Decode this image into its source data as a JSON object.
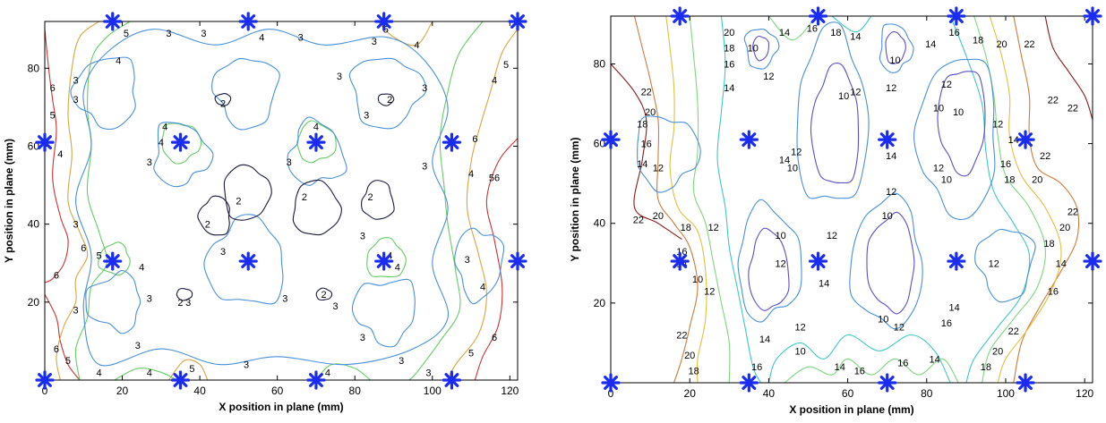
{
  "chart_data": [
    {
      "type": "contour",
      "xlabel": "X position in plane (mm)",
      "ylabel": "Y position in plane (mm)",
      "xlim": [
        0,
        122
      ],
      "ylim": [
        0,
        92
      ],
      "xticks": [
        0,
        20,
        40,
        60,
        80,
        100,
        120
      ],
      "yticks": [
        20,
        40,
        60,
        80
      ],
      "markers": [
        {
          "x": 0,
          "y": 61
        },
        {
          "x": 0,
          "y": 0
        },
        {
          "x": 17.5,
          "y": 92
        },
        {
          "x": 17.5,
          "y": 30.5
        },
        {
          "x": 35,
          "y": 61
        },
        {
          "x": 35,
          "y": 0
        },
        {
          "x": 52.5,
          "y": 92
        },
        {
          "x": 52.5,
          "y": 30.5
        },
        {
          "x": 70,
          "y": 61
        },
        {
          "x": 70,
          "y": 0
        },
        {
          "x": 87.5,
          "y": 92
        },
        {
          "x": 87.5,
          "y": 30.5
        },
        {
          "x": 105,
          "y": 61
        },
        {
          "x": 105,
          "y": 0
        },
        {
          "x": 122,
          "y": 92
        },
        {
          "x": 122,
          "y": 30.5
        }
      ],
      "levels": [
        {
          "value": 2,
          "color": "#1a1a40"
        },
        {
          "value": 3,
          "color": "#4a90d9"
        },
        {
          "value": 4,
          "color": "#66cc66"
        },
        {
          "value": 5,
          "color": "#d6a640"
        },
        {
          "value": 6,
          "color": "#cc3333"
        }
      ],
      "contour_labels": [
        {
          "text": "5",
          "x": 21,
          "y": 89
        },
        {
          "text": "3",
          "x": 32,
          "y": 89
        },
        {
          "text": "3",
          "x": 41,
          "y": 89
        },
        {
          "text": "4",
          "x": 56,
          "y": 88
        },
        {
          "text": "3",
          "x": 66,
          "y": 88
        },
        {
          "text": "3",
          "x": 85,
          "y": 87
        },
        {
          "text": "5",
          "x": 88,
          "y": 90
        },
        {
          "text": "4",
          "x": 96,
          "y": 86
        },
        {
          "text": "4",
          "x": 19,
          "y": 82
        },
        {
          "text": "3",
          "x": 8,
          "y": 77
        },
        {
          "text": "6",
          "x": 2,
          "y": 75
        },
        {
          "text": "3",
          "x": 76,
          "y": 78
        },
        {
          "text": "3",
          "x": 98,
          "y": 75
        },
        {
          "text": "5",
          "x": 119,
          "y": 81
        },
        {
          "text": "4",
          "x": 116,
          "y": 77
        },
        {
          "text": "2",
          "x": 46,
          "y": 71
        },
        {
          "text": "2",
          "x": 89,
          "y": 72
        },
        {
          "text": "3",
          "x": 8,
          "y": 72
        },
        {
          "text": "5",
          "x": 2,
          "y": 68
        },
        {
          "text": "3",
          "x": 83,
          "y": 68
        },
        {
          "text": "4",
          "x": 31,
          "y": 65
        },
        {
          "text": "4",
          "x": 70,
          "y": 65
        },
        {
          "text": "4",
          "x": 30,
          "y": 61
        },
        {
          "text": "6",
          "x": 111,
          "y": 62
        },
        {
          "text": "4",
          "x": 4,
          "y": 58
        },
        {
          "text": "3",
          "x": 27,
          "y": 56
        },
        {
          "text": "3",
          "x": 63,
          "y": 56
        },
        {
          "text": "3",
          "x": 98,
          "y": 55
        },
        {
          "text": "4",
          "x": 110,
          "y": 53
        },
        {
          "text": "56",
          "x": 116,
          "y": 52
        },
        {
          "text": "2",
          "x": 50,
          "y": 46
        },
        {
          "text": "2",
          "x": 67,
          "y": 47
        },
        {
          "text": "2",
          "x": 84,
          "y": 47
        },
        {
          "text": "2",
          "x": 42,
          "y": 40
        },
        {
          "text": "3",
          "x": 8,
          "y": 40
        },
        {
          "text": "3",
          "x": 82,
          "y": 37
        },
        {
          "text": "6",
          "x": 10,
          "y": 34
        },
        {
          "text": "5",
          "x": 14,
          "y": 32
        },
        {
          "text": "3",
          "x": 46,
          "y": 33
        },
        {
          "text": "4",
          "x": 89,
          "y": 32
        },
        {
          "text": "6",
          "x": 3,
          "y": 27
        },
        {
          "text": "4",
          "x": 25,
          "y": 29
        },
        {
          "text": "3",
          "x": 109,
          "y": 31
        },
        {
          "text": "4",
          "x": 91,
          "y": 29
        },
        {
          "text": "4",
          "x": 113,
          "y": 24
        },
        {
          "text": "3",
          "x": 27,
          "y": 21
        },
        {
          "text": "2",
          "x": 35,
          "y": 20
        },
        {
          "text": "3",
          "x": 62,
          "y": 21
        },
        {
          "text": "2",
          "x": 72,
          "y": 22
        },
        {
          "text": "3",
          "x": 37,
          "y": 20
        },
        {
          "text": "3",
          "x": 75,
          "y": 19
        },
        {
          "text": "3",
          "x": 8,
          "y": 18
        },
        {
          "text": "3",
          "x": 24,
          "y": 9
        },
        {
          "text": "3",
          "x": 82,
          "y": 11
        },
        {
          "text": "6",
          "x": 116,
          "y": 11
        },
        {
          "text": "6",
          "x": 3,
          "y": 8
        },
        {
          "text": "5",
          "x": 6,
          "y": 5
        },
        {
          "text": "4",
          "x": 14,
          "y": 2
        },
        {
          "text": "4",
          "x": 27,
          "y": 2
        },
        {
          "text": "5",
          "x": 38,
          "y": 3
        },
        {
          "text": "3",
          "x": 52,
          "y": 4
        },
        {
          "text": "3",
          "x": 92,
          "y": 5
        },
        {
          "text": "4",
          "x": 73,
          "y": 2
        },
        {
          "text": "5",
          "x": 110,
          "y": 7
        },
        {
          "text": "3",
          "x": 99,
          "y": 2
        }
      ]
    },
    {
      "type": "contour",
      "xlabel": "X position in plane (mm)",
      "ylabel": "Y position in plane (mm)",
      "xlim": [
        0,
        122
      ],
      "ylim": [
        0,
        92
      ],
      "xticks": [
        0,
        20,
        40,
        60,
        80,
        100,
        120
      ],
      "yticks": [
        20,
        40,
        60,
        80
      ],
      "markers": [
        {
          "x": 0,
          "y": 61
        },
        {
          "x": 0,
          "y": 0
        },
        {
          "x": 17.5,
          "y": 92
        },
        {
          "x": 17.5,
          "y": 30.5
        },
        {
          "x": 35,
          "y": 61
        },
        {
          "x": 35,
          "y": 0
        },
        {
          "x": 52.5,
          "y": 92
        },
        {
          "x": 52.5,
          "y": 30.5
        },
        {
          "x": 70,
          "y": 61
        },
        {
          "x": 70,
          "y": 0
        },
        {
          "x": 87.5,
          "y": 92
        },
        {
          "x": 87.5,
          "y": 30.5
        },
        {
          "x": 105,
          "y": 61
        },
        {
          "x": 105,
          "y": 0
        },
        {
          "x": 122,
          "y": 92
        },
        {
          "x": 122,
          "y": 30.5
        }
      ],
      "levels": [
        {
          "value": 10,
          "color": "#5a4fc8"
        },
        {
          "value": 12,
          "color": "#4a90d9"
        },
        {
          "value": 14,
          "color": "#3fc7c7"
        },
        {
          "value": 16,
          "color": "#7fd67f"
        },
        {
          "value": 18,
          "color": "#e0c040"
        },
        {
          "value": 20,
          "color": "#d27a3a"
        },
        {
          "value": 22,
          "color": "#8a1a1a"
        }
      ],
      "contour_labels": [
        {
          "text": "20",
          "x": 30,
          "y": 88
        },
        {
          "text": "10",
          "x": 36,
          "y": 84
        },
        {
          "text": "14",
          "x": 44,
          "y": 88
        },
        {
          "text": "16",
          "x": 51,
          "y": 89
        },
        {
          "text": "18",
          "x": 57,
          "y": 88
        },
        {
          "text": "14",
          "x": 62,
          "y": 87
        },
        {
          "text": "16",
          "x": 87,
          "y": 88
        },
        {
          "text": "18",
          "x": 93,
          "y": 86
        },
        {
          "text": "20",
          "x": 99,
          "y": 85
        },
        {
          "text": "22",
          "x": 106,
          "y": 85
        },
        {
          "text": "18",
          "x": 30,
          "y": 84
        },
        {
          "text": "14",
          "x": 81,
          "y": 85
        },
        {
          "text": "10",
          "x": 72,
          "y": 81
        },
        {
          "text": "16",
          "x": 30,
          "y": 80
        },
        {
          "text": "14",
          "x": 30,
          "y": 74
        },
        {
          "text": "12",
          "x": 40,
          "y": 77
        },
        {
          "text": "12",
          "x": 71,
          "y": 74
        },
        {
          "text": "12",
          "x": 85,
          "y": 75
        },
        {
          "text": "22",
          "x": 9,
          "y": 73
        },
        {
          "text": "12",
          "x": 62,
          "y": 73
        },
        {
          "text": "10",
          "x": 59,
          "y": 72
        },
        {
          "text": "10",
          "x": 83,
          "y": 69
        },
        {
          "text": "22",
          "x": 112,
          "y": 71
        },
        {
          "text": "22",
          "x": 117,
          "y": 69
        },
        {
          "text": "20",
          "x": 10,
          "y": 68
        },
        {
          "text": "10",
          "x": 88,
          "y": 68
        },
        {
          "text": "12",
          "x": 98,
          "y": 65
        },
        {
          "text": "18",
          "x": 8,
          "y": 65
        },
        {
          "text": "14",
          "x": 102,
          "y": 61
        },
        {
          "text": "16",
          "x": 9,
          "y": 60
        },
        {
          "text": "12",
          "x": 47,
          "y": 58
        },
        {
          "text": "14",
          "x": 71,
          "y": 57
        },
        {
          "text": "14",
          "x": 44,
          "y": 56
        },
        {
          "text": "22",
          "x": 110,
          "y": 57
        },
        {
          "text": "14",
          "x": 8,
          "y": 55
        },
        {
          "text": "12",
          "x": 12,
          "y": 54
        },
        {
          "text": "10",
          "x": 46,
          "y": 54
        },
        {
          "text": "12",
          "x": 83,
          "y": 54
        },
        {
          "text": "16",
          "x": 100,
          "y": 55
        },
        {
          "text": "18",
          "x": 101,
          "y": 51
        },
        {
          "text": "20",
          "x": 108,
          "y": 51
        },
        {
          "text": "10",
          "x": 85,
          "y": 51
        },
        {
          "text": "12",
          "x": 71,
          "y": 48
        },
        {
          "text": "10",
          "x": 70,
          "y": 42
        },
        {
          "text": "22",
          "x": 7,
          "y": 41
        },
        {
          "text": "20",
          "x": 12,
          "y": 42
        },
        {
          "text": "18",
          "x": 19,
          "y": 39
        },
        {
          "text": "12",
          "x": 26,
          "y": 39
        },
        {
          "text": "22",
          "x": 117,
          "y": 43
        },
        {
          "text": "20",
          "x": 115,
          "y": 39
        },
        {
          "text": "10",
          "x": 43,
          "y": 37
        },
        {
          "text": "12",
          "x": 56,
          "y": 37
        },
        {
          "text": "18",
          "x": 111,
          "y": 35
        },
        {
          "text": "16",
          "x": 18,
          "y": 33
        },
        {
          "text": "14",
          "x": 18,
          "y": 30
        },
        {
          "text": "10",
          "x": 22,
          "y": 26
        },
        {
          "text": "12",
          "x": 43,
          "y": 30
        },
        {
          "text": "12",
          "x": 97,
          "y": 30
        },
        {
          "text": "14",
          "x": 114,
          "y": 30
        },
        {
          "text": "12",
          "x": 25,
          "y": 23
        },
        {
          "text": "14",
          "x": 54,
          "y": 25
        },
        {
          "text": "16",
          "x": 112,
          "y": 23
        },
        {
          "text": "14",
          "x": 87,
          "y": 19
        },
        {
          "text": "10",
          "x": 69,
          "y": 16
        },
        {
          "text": "12",
          "x": 73,
          "y": 14
        },
        {
          "text": "16",
          "x": 85,
          "y": 15
        },
        {
          "text": "12",
          "x": 48,
          "y": 14
        },
        {
          "text": "22",
          "x": 102,
          "y": 13
        },
        {
          "text": "22",
          "x": 18,
          "y": 12
        },
        {
          "text": "14",
          "x": 39,
          "y": 11
        },
        {
          "text": "20",
          "x": 98,
          "y": 8
        },
        {
          "text": "10",
          "x": 48,
          "y": 8
        },
        {
          "text": "20",
          "x": 20,
          "y": 7
        },
        {
          "text": "16",
          "x": 37,
          "y": 4
        },
        {
          "text": "18",
          "x": 21,
          "y": 3
        },
        {
          "text": "14",
          "x": 58,
          "y": 4
        },
        {
          "text": "16",
          "x": 63,
          "y": 3
        },
        {
          "text": "16",
          "x": 74,
          "y": 5
        },
        {
          "text": "14",
          "x": 82,
          "y": 6
        },
        {
          "text": "18",
          "x": 95,
          "y": 4
        }
      ]
    }
  ]
}
